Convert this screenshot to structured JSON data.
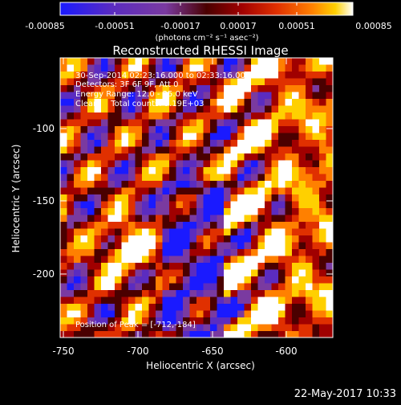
{
  "colorbar": {
    "tick_labels": [
      "-0.00085",
      "-0.00051",
      "-0.00017",
      "0.00017",
      "0.00051",
      "0.00085"
    ],
    "units_label": "(photons cm⁻² s⁻¹ asec⁻²)",
    "range": [
      -0.00085,
      0.00085
    ],
    "colors": [
      "#1a1aff",
      "#5b2cc0",
      "#7a3aa0",
      "#4a0000",
      "#a00000",
      "#e03000",
      "#ff8000",
      "#ffd000",
      "#ffffff"
    ]
  },
  "annotations": {
    "time_range": "30-Sep-2014 02:23:16.000 to 02:33:16.000",
    "detectors": "Detectors: 3F 6F 9F, Att 0",
    "energy_range": "Energy Range: 12.0 - 25.0 keV",
    "clean_counts": "Clean     Total counts: 9.19E+03",
    "peak_position": "Position of Peak = [-712,-184]"
  },
  "footer": {
    "date": "22-May-2017 10:33"
  },
  "chart_data": {
    "type": "heatmap",
    "title": "Reconstructed RHESSI Image",
    "xlabel": "Heliocentric X (arcsec)",
    "ylabel": "Heliocentric Y (arcsec)",
    "x_ticks": [
      "-750",
      "-700",
      "-650",
      "-600"
    ],
    "y_ticks": [
      "-100",
      "-150",
      "-200"
    ],
    "xlim": [
      -755,
      -575
    ],
    "ylim": [
      -245,
      -60
    ],
    "peak": [
      -712,
      -184
    ],
    "peak_value": 0.00085,
    "value_range": [
      -0.00085,
      0.00085
    ]
  }
}
